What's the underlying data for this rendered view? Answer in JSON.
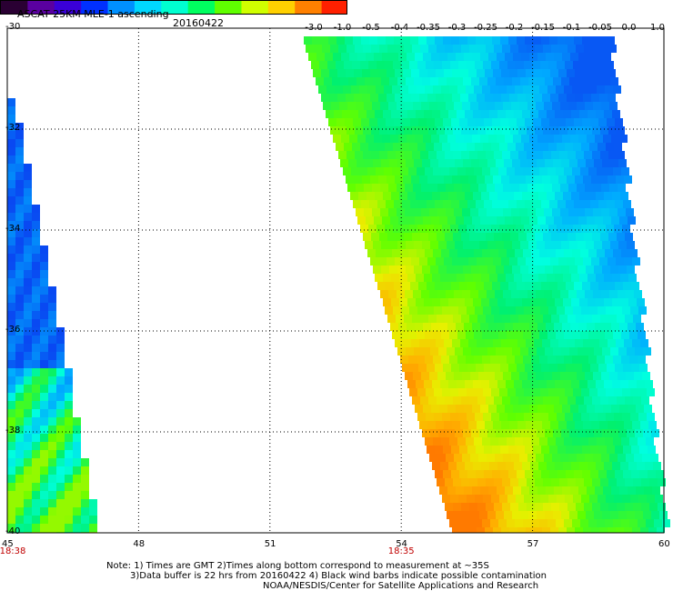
{
  "header": {
    "title": "ASCAT 25KM MLE-1 ascending",
    "date": "20160422"
  },
  "colorbar": {
    "ticks": [
      "-3.0",
      "-1.0",
      "-0.5",
      "-0.4",
      "-0.35",
      "-0.3",
      "-0.25",
      "-0.2",
      "-0.15",
      "-0.1",
      "-0.05",
      "0.0",
      "1.0"
    ],
    "colors": [
      "#2a0033",
      "#5a00a0",
      "#3a00d8",
      "#0030ff",
      "#0090ff",
      "#00d8ff",
      "#00ffd0",
      "#00ff60",
      "#60ff00",
      "#d0ff00",
      "#ffd000",
      "#ff8000",
      "#ff2000"
    ]
  },
  "axes": {
    "lat_labels": [
      "-30",
      "-32",
      "-34",
      "-36",
      "-38",
      "-40"
    ],
    "lon_labels": [
      "45",
      "48",
      "51",
      "54",
      "57",
      "60"
    ]
  },
  "pass_times": [
    {
      "lon": "45",
      "time": "18:38"
    },
    {
      "lon": "54",
      "time": "18:35"
    }
  ],
  "notes": {
    "line1": "Note: 1) Times are GMT 2)Times along bottom correspond to measurement at ~35S",
    "line2": "3)Data buffer is 22 hrs from 20160422 4) Black wind barbs indicate possible contamination",
    "line3": "NOAA/NESDIS/Center for Satellite Applications and Research"
  }
}
